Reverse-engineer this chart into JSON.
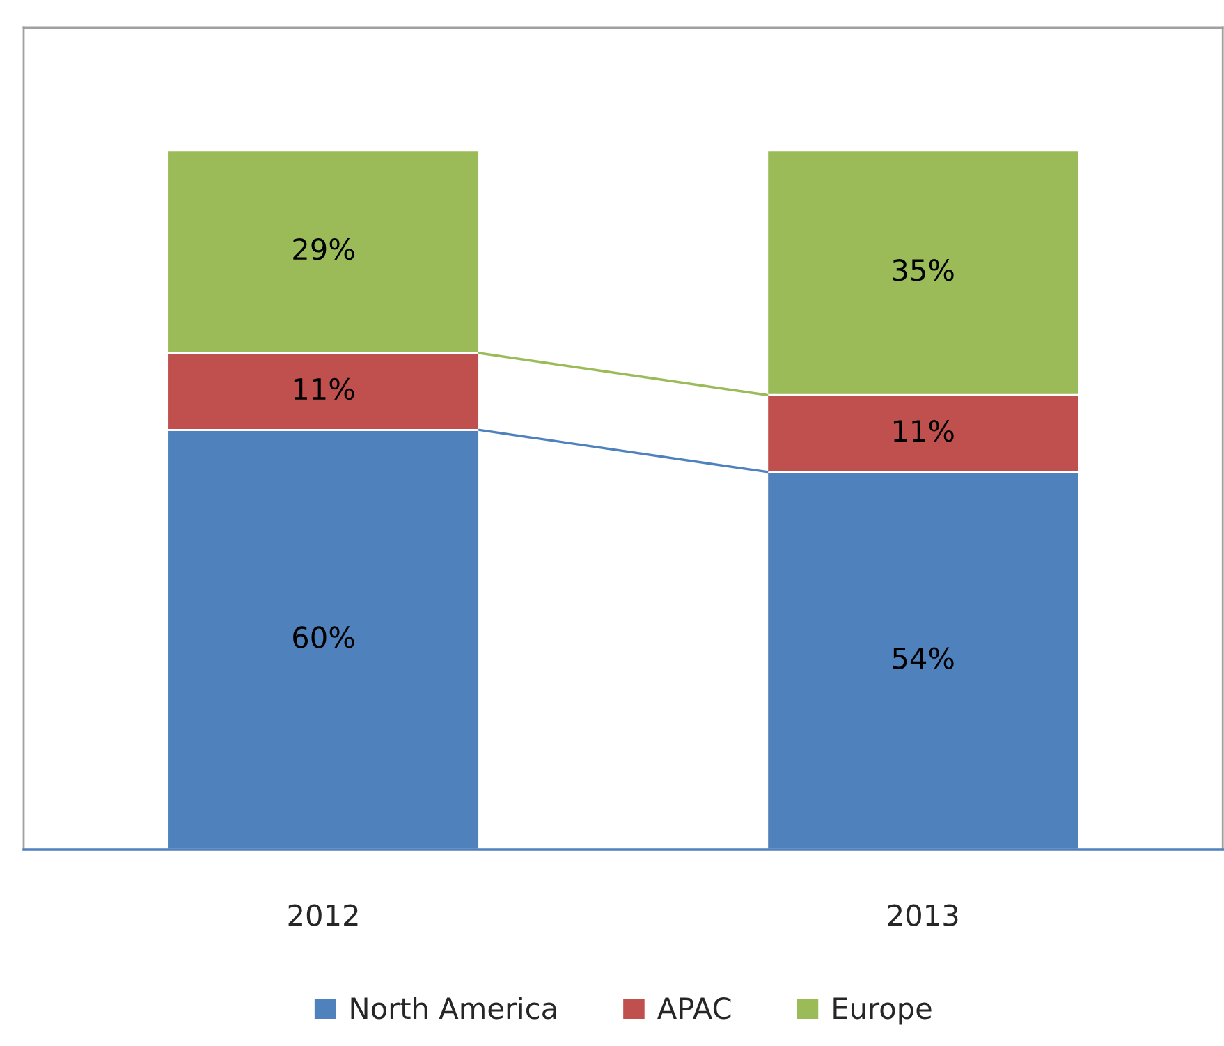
{
  "chart_data": {
    "type": "bar",
    "stacked": true,
    "categories": [
      "2012",
      "2013"
    ],
    "series": [
      {
        "name": "North America",
        "color": "#4f81bd",
        "values": [
          60,
          54
        ],
        "value_labels": [
          "60%",
          "54%"
        ]
      },
      {
        "name": "APAC",
        "color": "#c0504d",
        "values": [
          11,
          11
        ],
        "value_labels": [
          "11%",
          "11%"
        ]
      },
      {
        "name": "Europe",
        "color": "#9bbb59",
        "values": [
          29,
          35
        ],
        "value_labels": [
          "29%",
          "35%"
        ]
      }
    ],
    "ylim": [
      0,
      117.5
    ],
    "tick_labels": "x",
    "grid": false,
    "legend": "bottom"
  }
}
